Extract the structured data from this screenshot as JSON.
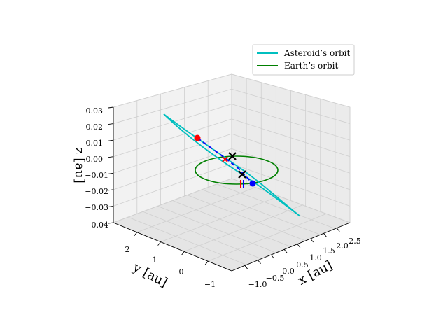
{
  "chart_data": {
    "type": "line",
    "projection": "3d",
    "axes": {
      "x": {
        "label": "x [au]",
        "ticks": [
          "−1.0",
          "−0.5",
          "0.0",
          "0.5",
          "1.0",
          "1.5",
          "2.0",
          "2.5"
        ],
        "range": [
          -1.25,
          2.75
        ]
      },
      "y": {
        "label": "y [au]",
        "ticks": [
          "−1",
          "0",
          "1",
          "2"
        ],
        "range": [
          -1.6,
          2.6
        ]
      },
      "z": {
        "label": "z [au]",
        "ticks": [
          "0.03",
          "0.02",
          "0.01",
          "0.00",
          "−0.01",
          "−0.02",
          "−0.03",
          "−0.04"
        ],
        "range": [
          -0.04,
          0.03
        ]
      }
    },
    "grid": true,
    "legend": {
      "placement": "top-right",
      "entries": [
        {
          "label": "Asteroid’s orbit",
          "color": "#00bfbf"
        },
        {
          "label": "Earth’s orbit",
          "color": "#008000"
        }
      ]
    },
    "series": [
      {
        "name": "Asteroid’s orbit",
        "color": "#00bfbf",
        "style": "solid",
        "shape": "narrow inclined ellipse"
      },
      {
        "name": "Earth’s orbit",
        "color": "#008000",
        "style": "solid",
        "shape": "circle, radius 1 au"
      }
    ],
    "transfer_path": {
      "color": "#0000ff",
      "style": "dashed"
    },
    "markers": [
      {
        "marker": "circle",
        "color": "#ff0000"
      },
      {
        "marker": "circle",
        "color": "#0000ff"
      },
      {
        "marker": "x",
        "color": "#000000"
      },
      {
        "marker": "x",
        "color": "#000000"
      },
      {
        "marker": "x",
        "color": "#ff0000"
      },
      {
        "marker": "bar",
        "color": "#ff0000"
      },
      {
        "marker": "bar",
        "color": "#0000ff"
      }
    ]
  }
}
